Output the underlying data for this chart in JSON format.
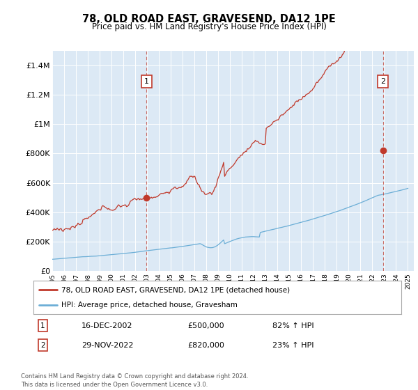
{
  "title": "78, OLD ROAD EAST, GRAVESEND, DA12 1PE",
  "subtitle": "Price paid vs. HM Land Registry's House Price Index (HPI)",
  "ylim": [
    0,
    1500000
  ],
  "yticks": [
    0,
    200000,
    400000,
    600000,
    800000,
    1000000,
    1200000,
    1400000
  ],
  "ytick_labels": [
    "£0",
    "£200K",
    "£400K",
    "£600K",
    "£800K",
    "£1M",
    "£1.2M",
    "£1.4M"
  ],
  "background_color": "#dce9f5",
  "sale1_date": 2002.96,
  "sale1_price": 500000,
  "sale2_date": 2022.91,
  "sale2_price": 820000,
  "hpi_line_color": "#6baed6",
  "price_line_color": "#c0392b",
  "vline_color": "#c0392b",
  "legend_label1": "78, OLD ROAD EAST, GRAVESEND, DA12 1PE (detached house)",
  "legend_label2": "HPI: Average price, detached house, Gravesham",
  "annotation1_label": "1",
  "annotation1_date_str": "16-DEC-2002",
  "annotation1_price_str": "£500,000",
  "annotation1_hpi_str": "82% ↑ HPI",
  "annotation2_label": "2",
  "annotation2_date_str": "29-NOV-2022",
  "annotation2_price_str": "£820,000",
  "annotation2_hpi_str": "23% ↑ HPI",
  "footer": "Contains HM Land Registry data © Crown copyright and database right 2024.\nThis data is licensed under the Open Government Licence v3.0.",
  "xmin": 1995,
  "xmax": 2025.5
}
